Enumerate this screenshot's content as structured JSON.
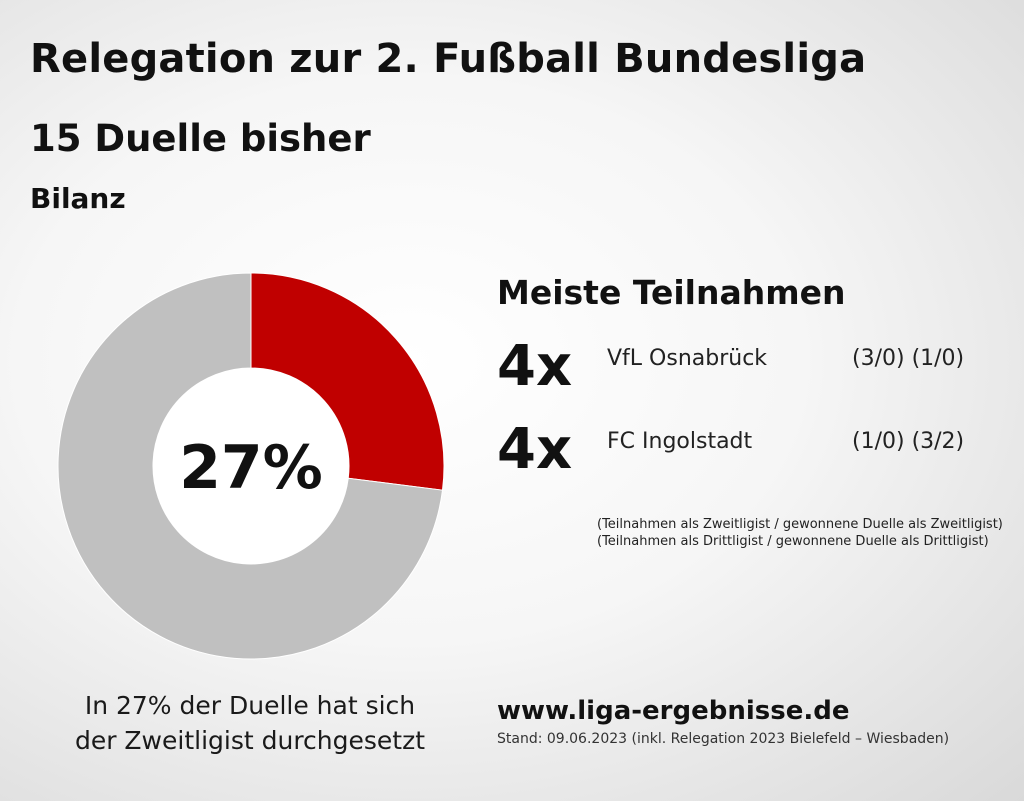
{
  "header": {
    "title": "Relegation zur 2. Fußball Bundesliga",
    "subtitle": "15 Duelle bisher",
    "section_label": "Bilanz"
  },
  "chart_data": {
    "type": "pie",
    "style": "donut",
    "slices": [
      {
        "value": 27,
        "color": "#c00000"
      },
      {
        "value": 73,
        "color": "#c0c0c0"
      }
    ],
    "center_label": "27%",
    "legend": "none"
  },
  "caption": {
    "line1": "In 27% der Duelle hat sich",
    "line2": "der Zweitligist durchgesetzt"
  },
  "ranking": {
    "title": "Meiste Teilnahmen",
    "rows": [
      {
        "count": "4x",
        "team": "VfL Osnabrück",
        "stats": "(3/0)  (1/0)"
      },
      {
        "count": "4x",
        "team": "FC Ingolstadt",
        "stats": "(1/0)  (3/2)"
      }
    ],
    "legend_line1": "(Teilnahmen als Zweitligist / gewonnene Duelle als Zweitligist)",
    "legend_line2": "(Teilnahmen als Drittligist / gewonnene Duelle als Drittligist)"
  },
  "footer": {
    "site": "www.liga-ergebnisse.de",
    "stand": "Stand: 09.06.2023 (inkl. Relegation 2023 Bielefeld – Wiesbaden)"
  }
}
